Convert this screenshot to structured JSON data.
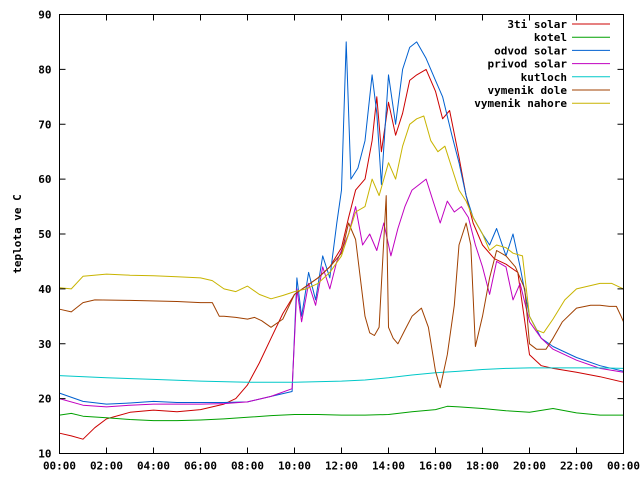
{
  "chart_data": {
    "type": "line",
    "ylabel": "teplota ve C",
    "xlabel": "",
    "ylim": [
      10,
      90
    ],
    "xlim": [
      0,
      24
    ],
    "yticks": [
      10,
      20,
      30,
      40,
      50,
      60,
      70,
      80,
      90
    ],
    "xticks": [
      0,
      2,
      4,
      6,
      8,
      10,
      12,
      14,
      16,
      18,
      20,
      22,
      24
    ],
    "xtick_labels": [
      "00:00",
      "02:00",
      "04:00",
      "06:00",
      "08:00",
      "10:00",
      "12:00",
      "14:00",
      "16:00",
      "18:00",
      "20:00",
      "22:00",
      "00:00"
    ],
    "grid": false,
    "legend_position": "top-right",
    "series": [
      {
        "name": "3ti solar",
        "color": "#cc0000",
        "points": [
          [
            0,
            13.7
          ],
          [
            0.5,
            13.2
          ],
          [
            1,
            12.6
          ],
          [
            1.5,
            14.7
          ],
          [
            2,
            16.3
          ],
          [
            3,
            17.5
          ],
          [
            4,
            17.9
          ],
          [
            5,
            17.6
          ],
          [
            6,
            18.0
          ],
          [
            7,
            19.0
          ],
          [
            7.5,
            20.0
          ],
          [
            8,
            22.5
          ],
          [
            8.5,
            26.5
          ],
          [
            9,
            31.0
          ],
          [
            9.5,
            35.5
          ],
          [
            10,
            39.0
          ],
          [
            10.5,
            40.5
          ],
          [
            11,
            42.0
          ],
          [
            11.5,
            44.0
          ],
          [
            12,
            47.5
          ],
          [
            12.3,
            53.0
          ],
          [
            12.6,
            58.0
          ],
          [
            13,
            60.0
          ],
          [
            13.3,
            67.0
          ],
          [
            13.5,
            75.0
          ],
          [
            13.7,
            65.0
          ],
          [
            14,
            74.0
          ],
          [
            14.3,
            68.0
          ],
          [
            14.6,
            72.0
          ],
          [
            14.9,
            78.0
          ],
          [
            15.2,
            79.0
          ],
          [
            15.6,
            80.0
          ],
          [
            16,
            76.0
          ],
          [
            16.3,
            71.0
          ],
          [
            16.6,
            72.5
          ],
          [
            17,
            64.0
          ],
          [
            17.3,
            57.0
          ],
          [
            17.6,
            52.0
          ],
          [
            18,
            48.0
          ],
          [
            18.5,
            45.5
          ],
          [
            19,
            44.5
          ],
          [
            19.5,
            43.0
          ],
          [
            20,
            28.0
          ],
          [
            20.5,
            26.0
          ],
          [
            21,
            25.5
          ],
          [
            22,
            24.8
          ],
          [
            23,
            24.0
          ],
          [
            24,
            23.0
          ]
        ]
      },
      {
        "name": "kotel",
        "color": "#00a000",
        "points": [
          [
            0,
            17.0
          ],
          [
            0.5,
            17.3
          ],
          [
            1,
            16.8
          ],
          [
            2,
            16.5
          ],
          [
            3,
            16.2
          ],
          [
            4,
            16.0
          ],
          [
            5,
            16.0
          ],
          [
            6,
            16.1
          ],
          [
            7,
            16.3
          ],
          [
            8,
            16.6
          ],
          [
            9,
            16.9
          ],
          [
            10,
            17.1
          ],
          [
            11,
            17.1
          ],
          [
            12,
            17.0
          ],
          [
            13,
            17.0
          ],
          [
            14,
            17.1
          ],
          [
            15,
            17.6
          ],
          [
            16,
            18.0
          ],
          [
            16.5,
            18.6
          ],
          [
            17,
            18.5
          ],
          [
            18,
            18.2
          ],
          [
            19,
            17.8
          ],
          [
            20,
            17.5
          ],
          [
            21,
            18.2
          ],
          [
            22,
            17.4
          ],
          [
            23,
            17.0
          ],
          [
            24,
            17.0
          ]
        ]
      },
      {
        "name": "odvod solar",
        "color": "#0060d0",
        "points": [
          [
            0,
            21.0
          ],
          [
            1,
            19.5
          ],
          [
            2,
            19.0
          ],
          [
            3,
            19.2
          ],
          [
            4,
            19.5
          ],
          [
            5,
            19.3
          ],
          [
            6,
            19.3
          ],
          [
            7,
            19.3
          ],
          [
            8,
            19.4
          ],
          [
            9,
            20.4
          ],
          [
            9.9,
            21.3
          ],
          [
            10.1,
            42.0
          ],
          [
            10.3,
            35.0
          ],
          [
            10.6,
            43.0
          ],
          [
            10.9,
            38.0
          ],
          [
            11.2,
            46.0
          ],
          [
            11.5,
            42.0
          ],
          [
            11.8,
            52.0
          ],
          [
            12.0,
            58.0
          ],
          [
            12.2,
            85.0
          ],
          [
            12.4,
            60.0
          ],
          [
            12.7,
            62.0
          ],
          [
            13.0,
            67.0
          ],
          [
            13.3,
            79.0
          ],
          [
            13.5,
            72.0
          ],
          [
            13.7,
            59.0
          ],
          [
            14.0,
            79.0
          ],
          [
            14.3,
            70.0
          ],
          [
            14.6,
            80.0
          ],
          [
            14.9,
            84.0
          ],
          [
            15.2,
            85.0
          ],
          [
            15.6,
            82.0
          ],
          [
            16.0,
            78.0
          ],
          [
            16.3,
            75.0
          ],
          [
            16.7,
            68.0
          ],
          [
            17.0,
            63.0
          ],
          [
            17.3,
            57.0
          ],
          [
            17.6,
            53.0
          ],
          [
            18.0,
            50.0
          ],
          [
            18.3,
            48.0
          ],
          [
            18.6,
            51.0
          ],
          [
            19.0,
            46.0
          ],
          [
            19.3,
            50.0
          ],
          [
            19.6,
            44.0
          ],
          [
            20.0,
            35.0
          ],
          [
            20.5,
            31.0
          ],
          [
            21,
            29.5
          ],
          [
            22,
            27.5
          ],
          [
            23,
            26.0
          ],
          [
            24,
            25.0
          ]
        ]
      },
      {
        "name": "privod solar",
        "color": "#c000c0",
        "points": [
          [
            0,
            20.0
          ],
          [
            1,
            18.8
          ],
          [
            2,
            18.5
          ],
          [
            3,
            18.8
          ],
          [
            4,
            19.0
          ],
          [
            5,
            19.0
          ],
          [
            6,
            19.0
          ],
          [
            7,
            19.1
          ],
          [
            8,
            19.4
          ],
          [
            9,
            20.4
          ],
          [
            9.9,
            21.8
          ],
          [
            10.1,
            40.0
          ],
          [
            10.3,
            34.0
          ],
          [
            10.6,
            41.0
          ],
          [
            10.9,
            37.0
          ],
          [
            11.2,
            44.0
          ],
          [
            11.5,
            40.0
          ],
          [
            11.8,
            45.0
          ],
          [
            12.0,
            47.0
          ],
          [
            12.3,
            50.0
          ],
          [
            12.6,
            55.0
          ],
          [
            12.9,
            48.0
          ],
          [
            13.2,
            50.0
          ],
          [
            13.5,
            47.0
          ],
          [
            13.8,
            52.0
          ],
          [
            14.1,
            46.0
          ],
          [
            14.4,
            51.0
          ],
          [
            14.7,
            55.0
          ],
          [
            15.0,
            58.0
          ],
          [
            15.3,
            59.0
          ],
          [
            15.6,
            60.0
          ],
          [
            15.9,
            56.0
          ],
          [
            16.2,
            52.0
          ],
          [
            16.5,
            56.0
          ],
          [
            16.8,
            54.0
          ],
          [
            17.1,
            55.0
          ],
          [
            17.4,
            53.0
          ],
          [
            17.7,
            48.0
          ],
          [
            18.0,
            44.0
          ],
          [
            18.3,
            39.0
          ],
          [
            18.6,
            45.0
          ],
          [
            19.0,
            44.0
          ],
          [
            19.3,
            38.0
          ],
          [
            19.6,
            41.0
          ],
          [
            20.0,
            34.0
          ],
          [
            20.5,
            31.0
          ],
          [
            21,
            29.0
          ],
          [
            22,
            27.0
          ],
          [
            23,
            25.5
          ],
          [
            24,
            24.8
          ]
        ]
      },
      {
        "name": "kutloch",
        "color": "#00c8c8",
        "points": [
          [
            0,
            24.2
          ],
          [
            2,
            23.8
          ],
          [
            4,
            23.5
          ],
          [
            6,
            23.2
          ],
          [
            8,
            23.0
          ],
          [
            10,
            23.0
          ],
          [
            12,
            23.2
          ],
          [
            13,
            23.4
          ],
          [
            14,
            23.8
          ],
          [
            15,
            24.3
          ],
          [
            16,
            24.7
          ],
          [
            17,
            25.0
          ],
          [
            18,
            25.3
          ],
          [
            19,
            25.5
          ],
          [
            20,
            25.6
          ],
          [
            21,
            25.6
          ],
          [
            22,
            25.6
          ],
          [
            23,
            25.6
          ],
          [
            24,
            25.5
          ]
        ]
      },
      {
        "name": "vymenik dole",
        "color": "#a04000",
        "points": [
          [
            0,
            36.3
          ],
          [
            0.5,
            35.8
          ],
          [
            1,
            37.5
          ],
          [
            1.5,
            38.0
          ],
          [
            3,
            37.9
          ],
          [
            5,
            37.7
          ],
          [
            6,
            37.5
          ],
          [
            6.5,
            37.5
          ],
          [
            6.8,
            35.0
          ],
          [
            7,
            35.0
          ],
          [
            7.5,
            34.8
          ],
          [
            8,
            34.5
          ],
          [
            8.3,
            34.8
          ],
          [
            8.6,
            34.2
          ],
          [
            9,
            33.0
          ],
          [
            9.5,
            34.5
          ],
          [
            10,
            39.0
          ],
          [
            10.5,
            40.5
          ],
          [
            11,
            42.0
          ],
          [
            11.5,
            44.0
          ],
          [
            12,
            46.5
          ],
          [
            12.3,
            52.0
          ],
          [
            12.6,
            49.0
          ],
          [
            12.8,
            42.0
          ],
          [
            13.0,
            35.0
          ],
          [
            13.2,
            32.0
          ],
          [
            13.4,
            31.5
          ],
          [
            13.6,
            33.0
          ],
          [
            13.9,
            57.0
          ],
          [
            14.0,
            33.0
          ],
          [
            14.2,
            31.0
          ],
          [
            14.4,
            30.0
          ],
          [
            14.7,
            32.5
          ],
          [
            15.0,
            35.0
          ],
          [
            15.4,
            36.5
          ],
          [
            15.7,
            33.0
          ],
          [
            16.0,
            25.0
          ],
          [
            16.2,
            22.0
          ],
          [
            16.5,
            28.0
          ],
          [
            16.8,
            37.0
          ],
          [
            17.0,
            48.0
          ],
          [
            17.3,
            52.0
          ],
          [
            17.5,
            48.0
          ],
          [
            17.7,
            29.5
          ],
          [
            18.0,
            35.0
          ],
          [
            18.3,
            42.0
          ],
          [
            18.6,
            47.0
          ],
          [
            19.0,
            46.0
          ],
          [
            19.4,
            44.0
          ],
          [
            19.8,
            40.0
          ],
          [
            20.0,
            30.0
          ],
          [
            20.3,
            29.0
          ],
          [
            20.7,
            29.0
          ],
          [
            21.0,
            31.0
          ],
          [
            21.4,
            34.0
          ],
          [
            22,
            36.5
          ],
          [
            22.6,
            37.0
          ],
          [
            23,
            37.0
          ],
          [
            23.4,
            36.8
          ],
          [
            23.7,
            36.8
          ],
          [
            23.9,
            35.0
          ],
          [
            24,
            34.0
          ]
        ]
      },
      {
        "name": "vymenik nahore",
        "color": "#c8b400",
        "points": [
          [
            0,
            40.2
          ],
          [
            0.5,
            40.0
          ],
          [
            1,
            42.3
          ],
          [
            2,
            42.7
          ],
          [
            3,
            42.5
          ],
          [
            4,
            42.4
          ],
          [
            5,
            42.2
          ],
          [
            6,
            42.0
          ],
          [
            6.5,
            41.5
          ],
          [
            7,
            40.0
          ],
          [
            7.5,
            39.5
          ],
          [
            8,
            40.5
          ],
          [
            8.5,
            39.0
          ],
          [
            9,
            38.2
          ],
          [
            9.5,
            38.8
          ],
          [
            10,
            39.5
          ],
          [
            10.5,
            40.0
          ],
          [
            11,
            41.0
          ],
          [
            11.5,
            43.0
          ],
          [
            12,
            46.0
          ],
          [
            12.3,
            50.0
          ],
          [
            12.6,
            54.0
          ],
          [
            13.0,
            55.0
          ],
          [
            13.3,
            60.0
          ],
          [
            13.6,
            57.0
          ],
          [
            14.0,
            63.0
          ],
          [
            14.3,
            60.0
          ],
          [
            14.6,
            66.0
          ],
          [
            14.9,
            70.0
          ],
          [
            15.2,
            71.0
          ],
          [
            15.5,
            71.5
          ],
          [
            15.8,
            67.0
          ],
          [
            16.1,
            65.0
          ],
          [
            16.4,
            66.0
          ],
          [
            16.7,
            62.0
          ],
          [
            17.0,
            58.0
          ],
          [
            17.3,
            56.0
          ],
          [
            17.6,
            53.0
          ],
          [
            18.0,
            50.0
          ],
          [
            18.3,
            47.0
          ],
          [
            18.6,
            48.0
          ],
          [
            19.0,
            47.5
          ],
          [
            19.3,
            46.5
          ],
          [
            19.7,
            46.0
          ],
          [
            20.0,
            35.0
          ],
          [
            20.3,
            32.5
          ],
          [
            20.6,
            32.0
          ],
          [
            21.0,
            34.5
          ],
          [
            21.5,
            38.0
          ],
          [
            22,
            40.0
          ],
          [
            23,
            41.0
          ],
          [
            23.5,
            41.0
          ],
          [
            24,
            40.0
          ]
        ]
      }
    ]
  }
}
